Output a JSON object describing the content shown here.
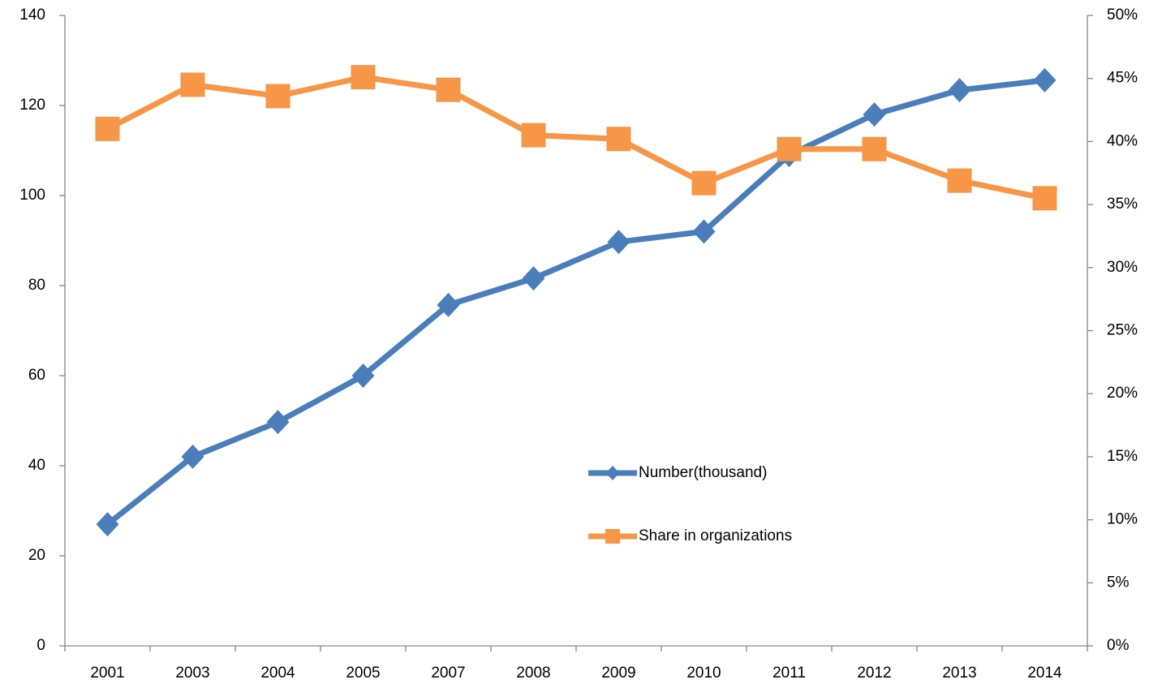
{
  "chart_data": {
    "type": "line",
    "categories": [
      "2001",
      "2003",
      "2004",
      "2005",
      "2007",
      "2008",
      "2009",
      "2010",
      "2011",
      "2012",
      "2013",
      "2014"
    ],
    "series": [
      {
        "name": "Number(thousand)",
        "color": "#4a7ebb",
        "marker": "diamond",
        "values": [
          27.0,
          42.0,
          49.7,
          60.0,
          75.7,
          81.6,
          89.7,
          92.0,
          109.0,
          118.0,
          123.4,
          125.6
        ]
      },
      {
        "name": "Share in organizations",
        "color": "#f79646",
        "marker": "square",
        "axis": "y2",
        "values": [
          41.0,
          44.5,
          43.6,
          45.1,
          44.1,
          40.5,
          40.2,
          36.7,
          39.4,
          39.4,
          36.9,
          35.5
        ]
      }
    ],
    "ylim": [
      0,
      140
    ],
    "yticks": [
      0,
      20,
      40,
      60,
      80,
      100,
      120,
      140
    ],
    "y2lim": [
      0,
      50
    ],
    "y2ticks": [
      {
        "value": 0,
        "label": "0%"
      },
      {
        "value": 5,
        "label": "5%"
      },
      {
        "value": 10,
        "label": "10%"
      },
      {
        "value": 15,
        "label": "15%"
      },
      {
        "value": 20,
        "label": "20%"
      },
      {
        "value": 25,
        "label": "25%"
      },
      {
        "value": 30,
        "label": "30%"
      },
      {
        "value": 35,
        "label": "35%"
      },
      {
        "value": 40,
        "label": "40%"
      },
      {
        "value": 45,
        "label": "45%"
      },
      {
        "value": 50,
        "label": "50%"
      }
    ]
  }
}
